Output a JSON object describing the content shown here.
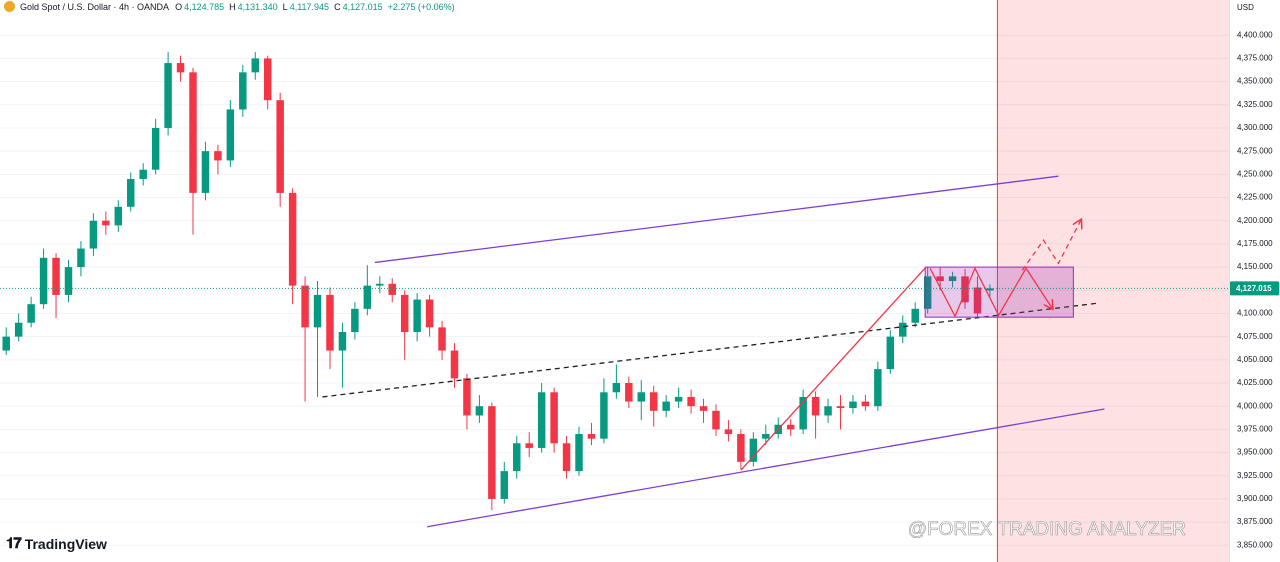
{
  "header": {
    "symbol": "Gold Spot / U.S. Dollar · 4h · OANDA",
    "o_key": "O",
    "open": "4,124.785",
    "h_key": "H",
    "high": "4,131.340",
    "l_key": "L",
    "low": "4,117.945",
    "c_key": "C",
    "close": "4,127.015",
    "change": "+2.275 (+0.06%)"
  },
  "axis_unit": "USD",
  "brand": "TradingView",
  "watermark": "@FOREX TRADING ANALYZER",
  "chart_data": {
    "type": "candlestick",
    "up_color": "#089981",
    "down_color": "#f23645",
    "grid": true,
    "xlim": [
      -0.5,
      98.2
    ],
    "ylim": [
      3832,
      4438
    ],
    "yticks": [
      {
        "value": 3850,
        "label": "3,850.000"
      },
      {
        "value": 3875,
        "label": "3,875.000"
      },
      {
        "value": 3900,
        "label": "3,900.000"
      },
      {
        "value": 3925,
        "label": "3,925.000"
      },
      {
        "value": 3950,
        "label": "3,950.000"
      },
      {
        "value": 3975,
        "label": "3,975.000"
      },
      {
        "value": 4000,
        "label": "4,000.000"
      },
      {
        "value": 4025,
        "label": "4,025.000"
      },
      {
        "value": 4050,
        "label": "4,050.000"
      },
      {
        "value": 4075,
        "label": "4,075.000"
      },
      {
        "value": 4100,
        "label": "4,100.000"
      },
      {
        "value": 4125,
        "label": "4,125.000"
      },
      {
        "value": 4150,
        "label": "4,150.000"
      },
      {
        "value": 4175,
        "label": "4,175.000"
      },
      {
        "value": 4200,
        "label": "4,200.000"
      },
      {
        "value": 4225,
        "label": "4,225.000"
      },
      {
        "value": 4250,
        "label": "4,250.000"
      },
      {
        "value": 4275,
        "label": "4,275.000"
      },
      {
        "value": 4300,
        "label": "4,300.000"
      },
      {
        "value": 4325,
        "label": "4,325.000"
      },
      {
        "value": 4350,
        "label": "4,350.000"
      },
      {
        "value": 4375,
        "label": "4,375.000"
      },
      {
        "value": 4400,
        "label": "4,400.000"
      }
    ],
    "last_price": {
      "value": 4127.015,
      "label": "4,127.015",
      "color": "#089981"
    },
    "candles": [
      [
        4060,
        4085,
        4055,
        4075
      ],
      [
        4075,
        4100,
        4070,
        4090
      ],
      [
        4090,
        4118,
        4085,
        4110
      ],
      [
        4110,
        4170,
        4105,
        4160
      ],
      [
        4160,
        4165,
        4095,
        4120
      ],
      [
        4120,
        4158,
        4112,
        4150
      ],
      [
        4150,
        4178,
        4140,
        4170
      ],
      [
        4170,
        4208,
        4162,
        4200
      ],
      [
        4200,
        4210,
        4185,
        4195
      ],
      [
        4195,
        4222,
        4188,
        4215
      ],
      [
        4215,
        4252,
        4210,
        4245
      ],
      [
        4245,
        4262,
        4238,
        4255
      ],
      [
        4255,
        4310,
        4250,
        4300
      ],
      [
        4300,
        4382,
        4292,
        4370
      ],
      [
        4370,
        4378,
        4350,
        4360
      ],
      [
        4360,
        4365,
        4185,
        4230
      ],
      [
        4230,
        4285,
        4222,
        4275
      ],
      [
        4275,
        4282,
        4250,
        4265
      ],
      [
        4265,
        4330,
        4258,
        4320
      ],
      [
        4320,
        4368,
        4312,
        4360
      ],
      [
        4360,
        4382,
        4352,
        4375
      ],
      [
        4375,
        4378,
        4320,
        4330
      ],
      [
        4330,
        4338,
        4215,
        4230
      ],
      [
        4230,
        4235,
        4110,
        4130
      ],
      [
        4130,
        4140,
        4005,
        4085
      ],
      [
        4085,
        4135,
        4010,
        4120
      ],
      [
        4120,
        4128,
        4040,
        4060
      ],
      [
        4060,
        4090,
        4020,
        4080
      ],
      [
        4080,
        4112,
        4072,
        4105
      ],
      [
        4105,
        4152,
        4098,
        4130
      ],
      [
        4130,
        4140,
        4122,
        4132
      ],
      [
        4132,
        4138,
        4112,
        4120
      ],
      [
        4120,
        4125,
        4050,
        4080
      ],
      [
        4080,
        4122,
        4070,
        4115
      ],
      [
        4115,
        4120,
        4075,
        4085
      ],
      [
        4085,
        4092,
        4050,
        4060
      ],
      [
        4060,
        4068,
        4020,
        4030
      ],
      [
        4030,
        4035,
        3975,
        3990
      ],
      [
        3990,
        4012,
        3982,
        4000
      ],
      [
        4000,
        4004,
        3888,
        3900
      ],
      [
        3900,
        3940,
        3895,
        3930
      ],
      [
        3930,
        3968,
        3922,
        3960
      ],
      [
        3960,
        3972,
        3945,
        3955
      ],
      [
        3955,
        4025,
        3950,
        4015
      ],
      [
        4015,
        4020,
        3950,
        3960
      ],
      [
        3960,
        3968,
        3922,
        3930
      ],
      [
        3930,
        3978,
        3925,
        3970
      ],
      [
        3970,
        3982,
        3958,
        3965
      ],
      [
        3965,
        4030,
        3960,
        4015
      ],
      [
        4015,
        4045,
        4008,
        4025
      ],
      [
        4025,
        4032,
        3998,
        4005
      ],
      [
        4005,
        4028,
        3985,
        4015
      ],
      [
        4015,
        4022,
        3978,
        3995
      ],
      [
        3995,
        4012,
        3988,
        4005
      ],
      [
        4005,
        4020,
        3998,
        4010
      ],
      [
        4010,
        4018,
        3992,
        4000
      ],
      [
        4000,
        4008,
        3982,
        3995
      ],
      [
        3995,
        4002,
        3968,
        3975
      ],
      [
        3975,
        3985,
        3962,
        3970
      ],
      [
        3970,
        3975,
        3932,
        3940
      ],
      [
        3940,
        3972,
        3935,
        3965
      ],
      [
        3965,
        3980,
        3958,
        3970
      ],
      [
        3970,
        3988,
        3965,
        3980
      ],
      [
        3980,
        3986,
        3968,
        3975
      ],
      [
        3975,
        4018,
        3970,
        4010
      ],
      [
        4010,
        4016,
        3965,
        3990
      ],
      [
        3990,
        4008,
        3982,
        4000
      ],
      [
        4000,
        4012,
        3975,
        3998
      ],
      [
        3998,
        4012,
        3992,
        4005
      ],
      [
        4005,
        4012,
        3995,
        4000
      ],
      [
        4000,
        4048,
        3995,
        4040
      ],
      [
        4040,
        4082,
        4035,
        4075
      ],
      [
        4075,
        4098,
        4068,
        4090
      ],
      [
        4090,
        4112,
        4085,
        4105
      ],
      [
        4105,
        4150,
        4100,
        4140
      ],
      [
        4140,
        4150,
        4125,
        4135
      ],
      [
        4135,
        4145,
        4128,
        4140
      ],
      [
        4140,
        4148,
        4105,
        4112
      ],
      [
        4128,
        4140,
        4095,
        4100
      ],
      [
        4124.785,
        4131.34,
        4117.945,
        4127.015
      ]
    ],
    "future_zone_start": 79.6,
    "drawings": [
      {
        "kind": "line",
        "color": "#7e3fd1",
        "points": [
          [
            29.6,
            4155
          ],
          [
            84.5,
            4248
          ]
        ]
      },
      {
        "kind": "line",
        "color": "#7e3fd1",
        "points": [
          [
            33.8,
            3870
          ],
          [
            88.2,
            3997
          ]
        ]
      },
      {
        "kind": "dashed",
        "color": "#222222",
        "points": [
          [
            25.4,
            4010
          ],
          [
            87.6,
            4111
          ]
        ]
      },
      {
        "kind": "line",
        "color": "#f23645",
        "points": [
          [
            59,
            3931
          ],
          [
            73.8,
            4149
          ]
        ]
      },
      {
        "kind": "rect",
        "color": "#9c27b0",
        "points": [
          [
            73.8,
            4150
          ],
          [
            85.7,
            4096
          ]
        ]
      },
      {
        "kind": "arrow",
        "color": "#f23645",
        "points": [
          [
            74.2,
            4148.7
          ],
          [
            76.2,
            4097
          ],
          [
            77.8,
            4148.7
          ],
          [
            79.7,
            4098
          ],
          [
            81.9,
            4148.7
          ],
          [
            84.0,
            4105.6
          ]
        ]
      },
      {
        "kind": "dashed-arrow",
        "color": "#f23645",
        "points": [
          [
            81.6,
            4146.6
          ],
          [
            83.3,
            4179
          ],
          [
            84.5,
            4154
          ],
          [
            86.3,
            4200.5
          ]
        ]
      }
    ]
  }
}
